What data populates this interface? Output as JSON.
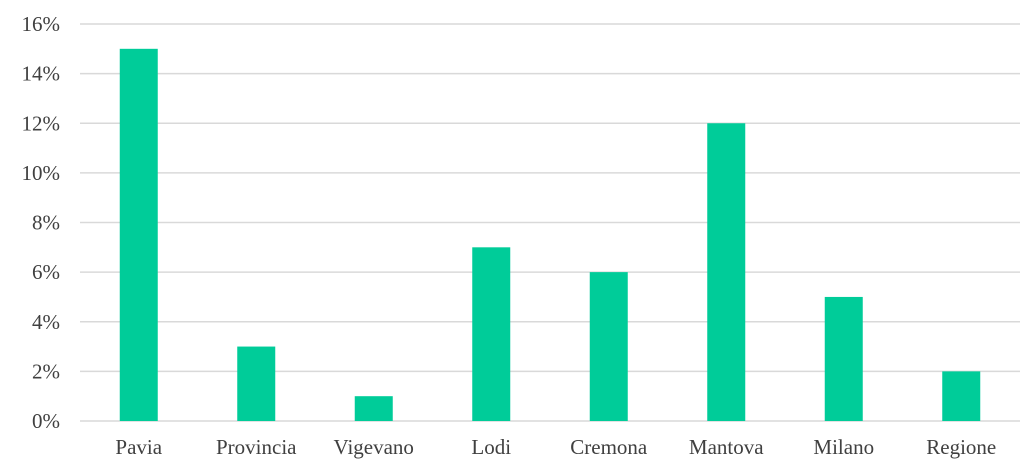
{
  "chart_data": {
    "type": "bar",
    "categories": [
      "Pavia",
      "Provincia",
      "Vigevano",
      "Lodi",
      "Cremona",
      "Mantova",
      "Milano",
      "Regione"
    ],
    "values": [
      15,
      3,
      1,
      7,
      6,
      12,
      5,
      2
    ],
    "value_unit": "%",
    "ylim": [
      0,
      16
    ],
    "ytick_step": 2,
    "y_tick_labels": [
      "0%",
      "2%",
      "4%",
      "6%",
      "8%",
      "10%",
      "12%",
      "14%",
      "16%"
    ],
    "title": "",
    "xlabel": "",
    "ylabel": "",
    "grid": true,
    "legend": "none",
    "bar_color": "#00cc99",
    "grid_color": "#d9d9d9",
    "text_color": "#404040"
  }
}
